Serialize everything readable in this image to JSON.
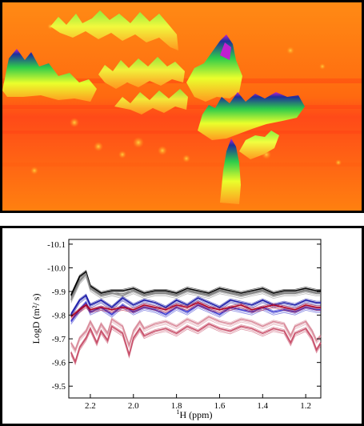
{
  "afm_image": {
    "colors": {
      "base": "#ff7a0a",
      "hot": "#ff3d1a",
      "ridge_mid": "#e8ff2a",
      "ridge_high": "#22cc44",
      "peak": "#1b2a9a",
      "tip": "#c020d0"
    }
  },
  "chart_data": {
    "type": "line",
    "title": "",
    "xlabel_prefix": "1",
    "xlabel_sup": "H",
    "xlabel": " (ppm)",
    "ylabel": "LogD (m²/ s)",
    "xlim": [
      2.3,
      1.13
    ],
    "ylim": [
      -9.45,
      -10.12
    ],
    "x_ticks": [
      2.2,
      2.0,
      1.8,
      1.6,
      1.4,
      1.2
    ],
    "x_tick_labels": [
      "2.2",
      "2.0",
      "1.8",
      "1.6",
      "1.4",
      "1.2"
    ],
    "y_ticks": [
      -9.5,
      -9.6,
      -9.7,
      -9.8,
      -9.9,
      -10.0,
      -10.1
    ],
    "y_tick_labels": [
      "-9.5",
      "-9.6",
      "-9.7",
      "-9.8",
      "-9.9",
      "-10.0",
      "-10.1"
    ],
    "grid": false,
    "series": [
      {
        "color": "#000000",
        "x": [
          2.29,
          2.25,
          2.22,
          2.2,
          2.15,
          2.1,
          2.05,
          2.0,
          1.95,
          1.9,
          1.85,
          1.8,
          1.75,
          1.7,
          1.65,
          1.6,
          1.55,
          1.5,
          1.45,
          1.4,
          1.35,
          1.3,
          1.25,
          1.2,
          1.15,
          1.13
        ],
        "y": [
          -9.88,
          -9.96,
          -9.98,
          -9.92,
          -9.89,
          -9.9,
          -9.9,
          -9.91,
          -9.89,
          -9.9,
          -9.9,
          -9.89,
          -9.91,
          -9.9,
          -9.89,
          -9.91,
          -9.9,
          -9.89,
          -9.9,
          -9.91,
          -9.89,
          -9.9,
          -9.9,
          -9.91,
          -9.9,
          -9.9
        ]
      },
      {
        "color": "#888888",
        "x": [
          2.29,
          2.25,
          2.22,
          2.2,
          2.15,
          2.1,
          2.05,
          2.0,
          1.95,
          1.9,
          1.85,
          1.8,
          1.75,
          1.7,
          1.65,
          1.6,
          1.55,
          1.5,
          1.45,
          1.4,
          1.35,
          1.3,
          1.25,
          1.2,
          1.15,
          1.13
        ],
        "y": [
          -9.86,
          -9.94,
          -9.97,
          -9.91,
          -9.88,
          -9.89,
          -9.88,
          -9.9,
          -9.88,
          -9.89,
          -9.89,
          -9.88,
          -9.9,
          -9.89,
          -9.88,
          -9.9,
          -9.89,
          -9.88,
          -9.89,
          -9.9,
          -9.88,
          -9.89,
          -9.89,
          -9.9,
          -9.89,
          -9.89
        ]
      },
      {
        "color": "#1a1aa8",
        "x": [
          2.29,
          2.25,
          2.22,
          2.2,
          2.15,
          2.1,
          2.05,
          2.0,
          1.95,
          1.9,
          1.85,
          1.8,
          1.75,
          1.7,
          1.65,
          1.6,
          1.55,
          1.5,
          1.45,
          1.4,
          1.35,
          1.3,
          1.25,
          1.2,
          1.15,
          1.13
        ],
        "y": [
          -9.8,
          -9.86,
          -9.88,
          -9.84,
          -9.86,
          -9.83,
          -9.87,
          -9.84,
          -9.86,
          -9.85,
          -9.83,
          -9.86,
          -9.84,
          -9.87,
          -9.85,
          -9.83,
          -9.86,
          -9.85,
          -9.84,
          -9.86,
          -9.84,
          -9.85,
          -9.84,
          -9.86,
          -9.85,
          -9.85
        ]
      },
      {
        "color": "#3b3bd0",
        "x": [
          2.29,
          2.25,
          2.22,
          2.2,
          2.15,
          2.1,
          2.05,
          2.0,
          1.95,
          1.9,
          1.85,
          1.8,
          1.75,
          1.7,
          1.65,
          1.6,
          1.55,
          1.5,
          1.45,
          1.4,
          1.35,
          1.3,
          1.25,
          1.2,
          1.15,
          1.13
        ],
        "y": [
          -9.77,
          -9.82,
          -9.85,
          -9.81,
          -9.83,
          -9.8,
          -9.84,
          -9.81,
          -9.83,
          -9.82,
          -9.8,
          -9.83,
          -9.81,
          -9.84,
          -9.82,
          -9.8,
          -9.83,
          -9.82,
          -9.81,
          -9.83,
          -9.81,
          -9.82,
          -9.81,
          -9.83,
          -9.82,
          -9.82
        ]
      },
      {
        "color": "#b00020",
        "x": [
          2.29,
          2.25,
          2.22,
          2.2,
          2.15,
          2.1,
          2.05,
          2.0,
          1.95,
          1.9,
          1.85,
          1.8,
          1.75,
          1.7,
          1.65,
          1.6,
          1.55,
          1.5,
          1.45,
          1.4,
          1.35,
          1.3,
          1.25,
          1.2,
          1.15,
          1.13
        ],
        "y": [
          -9.79,
          -9.82,
          -9.84,
          -9.82,
          -9.83,
          -9.82,
          -9.83,
          -9.82,
          -9.84,
          -9.83,
          -9.82,
          -9.84,
          -9.83,
          -9.85,
          -9.83,
          -9.82,
          -9.83,
          -9.84,
          -9.82,
          -9.83,
          -9.84,
          -9.83,
          -9.82,
          -9.84,
          -9.83,
          -9.83
        ]
      },
      {
        "color": "#c8506a",
        "x": [
          2.29,
          2.27,
          2.25,
          2.22,
          2.2,
          2.17,
          2.15,
          2.12,
          2.1,
          2.05,
          2.02,
          2.0,
          1.97,
          1.95,
          1.9,
          1.85,
          1.8,
          1.75,
          1.7,
          1.65,
          1.6,
          1.55,
          1.5,
          1.45,
          1.4,
          1.35,
          1.3,
          1.27,
          1.25,
          1.2,
          1.17,
          1.15,
          1.13
        ],
        "y": [
          -9.64,
          -9.6,
          -9.66,
          -9.7,
          -9.74,
          -9.68,
          -9.73,
          -9.69,
          -9.75,
          -9.72,
          -9.63,
          -9.7,
          -9.74,
          -9.71,
          -9.73,
          -9.74,
          -9.72,
          -9.75,
          -9.73,
          -9.76,
          -9.74,
          -9.73,
          -9.75,
          -9.74,
          -9.72,
          -9.74,
          -9.73,
          -9.68,
          -9.72,
          -9.74,
          -9.7,
          -9.65,
          -9.68
        ]
      },
      {
        "color": "#d98a9a",
        "x": [
          2.29,
          2.27,
          2.25,
          2.22,
          2.2,
          2.17,
          2.15,
          2.12,
          2.1,
          2.05,
          2.02,
          2.0,
          1.97,
          1.95,
          1.9,
          1.85,
          1.8,
          1.75,
          1.7,
          1.65,
          1.6,
          1.55,
          1.5,
          1.45,
          1.4,
          1.35,
          1.3,
          1.27,
          1.25,
          1.2,
          1.17,
          1.15,
          1.13
        ],
        "y": [
          -9.68,
          -9.65,
          -9.7,
          -9.73,
          -9.77,
          -9.72,
          -9.76,
          -9.72,
          -9.78,
          -9.75,
          -9.67,
          -9.73,
          -9.77,
          -9.74,
          -9.76,
          -9.77,
          -9.75,
          -9.78,
          -9.76,
          -9.79,
          -9.77,
          -9.76,
          -9.78,
          -9.77,
          -9.75,
          -9.77,
          -9.76,
          -9.71,
          -9.75,
          -9.77,
          -9.73,
          -9.69,
          -9.71
        ]
      }
    ]
  }
}
